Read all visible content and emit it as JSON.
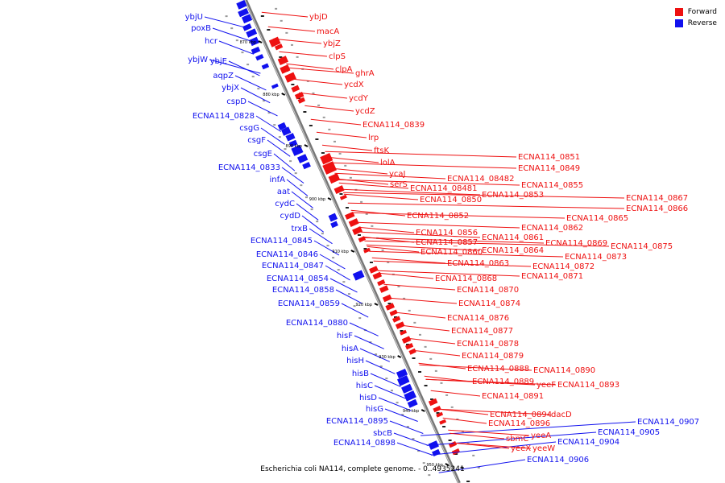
{
  "legend": {
    "forward": {
      "label": "Forward",
      "color": "#ee1111"
    },
    "reverse": {
      "label": "Reverse",
      "color": "#1111ee"
    }
  },
  "caption": "Escherichia coli NA114, complete genome. - 0..4935241",
  "ticks": [
    "870 kbp",
    "880 kbp",
    "890 kbp",
    "900 kbp",
    "910 kbp",
    "920 kbp",
    "930 kbp",
    "940 kbp",
    "950 kbp"
  ],
  "reverse_genes": [
    "ybjU",
    "poxB",
    "hcr",
    "ybjW",
    "ybjE",
    "aqpZ",
    "ybjX",
    "cspD",
    "ECNA114_0828",
    "csgG",
    "csgF",
    "csgE",
    "ECNA114_0833",
    "infA",
    "aat",
    "cydC",
    "cydD",
    "trxB",
    "ECNA114_0845",
    "ECNA114_0846",
    "ECNA114_0847",
    "ECNA114_0854",
    "ECNA114_0858",
    "ECNA114_0859",
    "ECNA114_0880",
    "hisF",
    "hisA",
    "hisH",
    "hisB",
    "hisC",
    "hisD",
    "hisG",
    "ECNA114_0895",
    "sbcB",
    "ECNA114_0898",
    "ECNA114_0904",
    "ECNA114_0905",
    "ECNA114_0906",
    "ECNA114_0907"
  ],
  "forward_genes": [
    "ybjD",
    "macA",
    "ybjZ",
    "clpS",
    "clpA",
    "ghrA",
    "ycdX",
    "ycdY",
    "ycdZ",
    "ECNA114_0839",
    "lrp",
    "ftsK",
    "lolA",
    "ycaJ",
    "serS",
    "ECNA114_0851",
    "ECNA114_0849",
    "ECNA114_08482",
    "ECNA114_08481",
    "ECNA114_0850",
    "ECNA114_0853",
    "ECNA114_0855",
    "ECNA114_0852",
    "ECNA114_0867",
    "ECNA114_0866",
    "ECNA114_0865",
    "ECNA114_0862",
    "ECNA114_0856",
    "ECNA114_0861",
    "ECNA114_0857",
    "ECNA114_0869",
    "ECNA114_0875",
    "ECNA114_0864",
    "ECNA114_0860",
    "ECNA114_0873",
    "ECNA114_0863",
    "ECNA114_0872",
    "ECNA114_0871",
    "ECNA114_0868",
    "ECNA114_0870",
    "ECNA114_0874",
    "ECNA114_0876",
    "ECNA114_0877",
    "ECNA114_0878",
    "ECNA114_0879",
    "ECNA114_0888",
    "ECNA114_0890",
    "ECNA114_0889",
    "yeeF",
    "ECNA114_0893",
    "ECNA114_0891",
    "ECNA114_0894",
    "dacD",
    "ECNA114_0896",
    "yeeA",
    "sbmC",
    "yeeX",
    "yeeW"
  ]
}
